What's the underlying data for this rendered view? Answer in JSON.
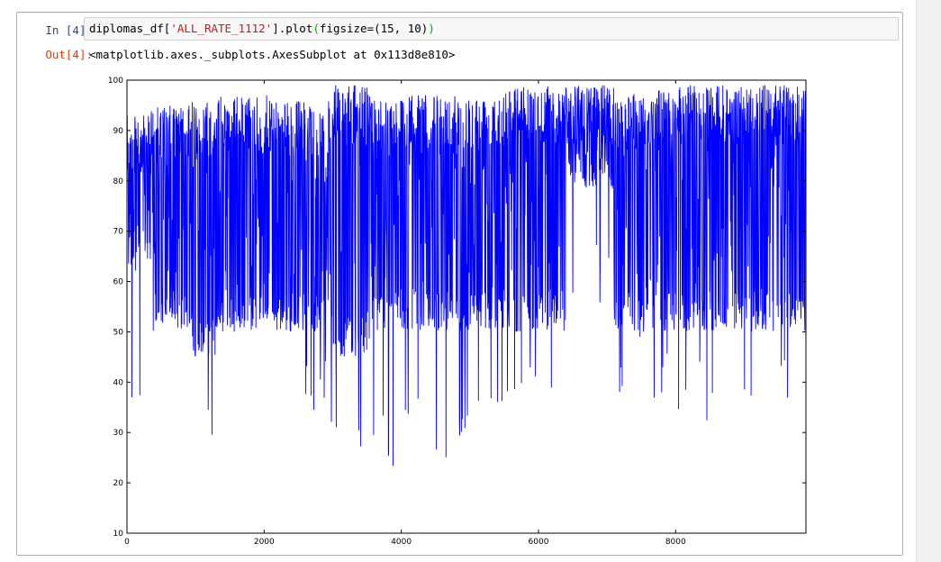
{
  "cell": {
    "in_prompt": "In [4]:",
    "out_prompt": "Out[4]:",
    "code": {
      "prefix": "diplomas_df[",
      "string": "'ALL_RATE_1112'",
      "mid": "].plot",
      "open_paren": "(",
      "args": "figsize=(15, 10)",
      "close_paren": ")"
    },
    "output_text": "<matplotlib.axes._subplots.AxesSubplot at 0x113d8e810>"
  },
  "chart_data": {
    "type": "line",
    "title": "",
    "xlabel": "",
    "ylabel": "",
    "xlim": [
      0,
      9900
    ],
    "ylim": [
      10,
      100
    ],
    "xticks": [
      0,
      2000,
      4000,
      6000,
      8000
    ],
    "yticks": [
      10,
      20,
      30,
      40,
      50,
      60,
      70,
      80,
      90,
      100
    ],
    "grid": false,
    "legend": "none",
    "line_color": "#0000ff",
    "n_points": 9900,
    "segments": [
      {
        "x_start": 0,
        "x_end": 350,
        "high": 93,
        "base_low": 62,
        "dip": 30
      },
      {
        "x_start": 350,
        "x_end": 950,
        "high": 95,
        "base_low": 50,
        "dip": 52
      },
      {
        "x_start": 950,
        "x_end": 1300,
        "high": 96,
        "base_low": 45,
        "dip": 20
      },
      {
        "x_start": 1300,
        "x_end": 2200,
        "high": 97,
        "base_low": 50,
        "dip": 45
      },
      {
        "x_start": 2200,
        "x_end": 3000,
        "high": 96,
        "base_low": 50,
        "dip": 32
      },
      {
        "x_start": 3000,
        "x_end": 3600,
        "high": 99,
        "base_low": 45,
        "dip": 18
      },
      {
        "x_start": 3600,
        "x_end": 4200,
        "high": 97,
        "base_low": 50,
        "dip": 22
      },
      {
        "x_start": 4200,
        "x_end": 5200,
        "high": 97,
        "base_low": 50,
        "dip": 25
      },
      {
        "x_start": 5200,
        "x_end": 6400,
        "high": 99,
        "base_low": 50,
        "dip": 36
      },
      {
        "x_start": 6400,
        "x_end": 7100,
        "high": 99,
        "base_low": 78,
        "dip": 55
      },
      {
        "x_start": 7100,
        "x_end": 7900,
        "high": 98,
        "base_low": 50,
        "dip": 35
      },
      {
        "x_start": 7900,
        "x_end": 9900,
        "high": 99,
        "base_low": 50,
        "dip": 30
      }
    ]
  }
}
